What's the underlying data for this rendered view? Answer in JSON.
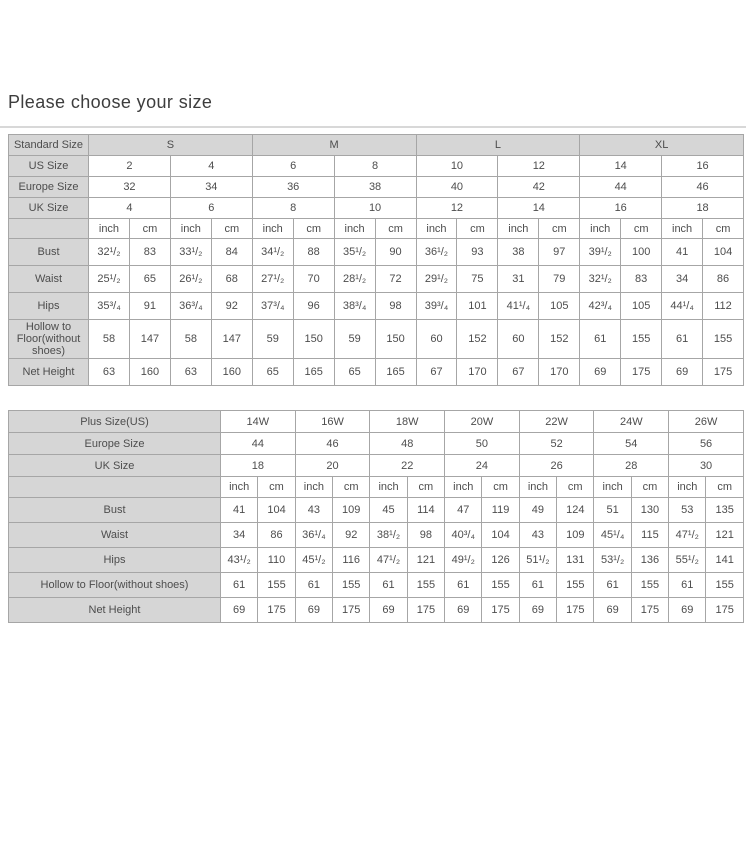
{
  "page": {
    "title": "Please choose your size"
  },
  "colors": {
    "header_bg": "#d6d6d6",
    "cell_bg": "#ffffff",
    "border": "#a6a6a6",
    "text": "#4d4d4d",
    "title_text": "#3d3d3d",
    "divider": "#d8d8d8"
  },
  "table1": {
    "size_row": {
      "label": "Standard Size",
      "sizes": [
        "S",
        "M",
        "L",
        "XL"
      ]
    },
    "conversion_rows": [
      {
        "label": "US Size",
        "values": [
          "2",
          "4",
          "6",
          "8",
          "10",
          "12",
          "14",
          "16"
        ]
      },
      {
        "label": "Europe Size",
        "values": [
          "32",
          "34",
          "36",
          "38",
          "40",
          "42",
          "44",
          "46"
        ]
      },
      {
        "label": "UK Size",
        "values": [
          "4",
          "6",
          "8",
          "10",
          "12",
          "14",
          "16",
          "18"
        ]
      }
    ],
    "unit_row": [
      "inch",
      "cm",
      "inch",
      "cm",
      "inch",
      "cm",
      "inch",
      "cm",
      "inch",
      "cm",
      "inch",
      "cm",
      "inch",
      "cm",
      "inch",
      "cm"
    ],
    "measure_rows": [
      {
        "label": "Bust",
        "values": [
          "32¹/₂",
          "83",
          "33¹/₂",
          "84",
          "34¹/₂",
          "88",
          "35¹/₂",
          "90",
          "36¹/₂",
          "93",
          "38",
          "97",
          "39¹/₂",
          "100",
          "41",
          "104"
        ]
      },
      {
        "label": "Waist",
        "values": [
          "25¹/₂",
          "65",
          "26¹/₂",
          "68",
          "27¹/₂",
          "70",
          "28¹/₂",
          "72",
          "29¹/₂",
          "75",
          "31",
          "79",
          "32¹/₂",
          "83",
          "34",
          "86"
        ]
      },
      {
        "label": "Hips",
        "values": [
          "35³/₄",
          "91",
          "36³/₄",
          "92",
          "37³/₄",
          "96",
          "38³/₄",
          "98",
          "39³/₄",
          "101",
          "41¹/₄",
          "105",
          "42³/₄",
          "105",
          "44¹/₄",
          "112"
        ]
      },
      {
        "label": "Hollow to Floor(without shoes)",
        "values": [
          "58",
          "147",
          "58",
          "147",
          "59",
          "150",
          "59",
          "150",
          "60",
          "152",
          "60",
          "152",
          "61",
          "155",
          "61",
          "155"
        ]
      },
      {
        "label": "Net Height",
        "values": [
          "63",
          "160",
          "63",
          "160",
          "65",
          "165",
          "65",
          "165",
          "67",
          "170",
          "67",
          "170",
          "69",
          "175",
          "69",
          "175"
        ]
      }
    ]
  },
  "table2": {
    "conversion_rows": [
      {
        "label": "Plus Size(US)",
        "values": [
          "14W",
          "16W",
          "18W",
          "20W",
          "22W",
          "24W",
          "26W"
        ]
      },
      {
        "label": "Europe Size",
        "values": [
          "44",
          "46",
          "48",
          "50",
          "52",
          "54",
          "56"
        ]
      },
      {
        "label": "UK Size",
        "values": [
          "18",
          "20",
          "22",
          "24",
          "26",
          "28",
          "30"
        ]
      }
    ],
    "unit_row": [
      "inch",
      "cm",
      "inch",
      "cm",
      "inch",
      "cm",
      "inch",
      "cm",
      "inch",
      "cm",
      "inch",
      "cm",
      "inch",
      "cm"
    ],
    "measure_rows": [
      {
        "label": "Bust",
        "values": [
          "41",
          "104",
          "43",
          "109",
          "45",
          "114",
          "47",
          "119",
          "49",
          "124",
          "51",
          "130",
          "53",
          "135"
        ]
      },
      {
        "label": "Waist",
        "values": [
          "34",
          "86",
          "36¹/₄",
          "92",
          "38¹/₂",
          "98",
          "40³/₄",
          "104",
          "43",
          "109",
          "45¹/₄",
          "115",
          "47¹/₂",
          "121"
        ]
      },
      {
        "label": "Hips",
        "values": [
          "43¹/₂",
          "110",
          "45¹/₂",
          "116",
          "47¹/₂",
          "121",
          "49¹/₂",
          "126",
          "51¹/₂",
          "131",
          "53¹/₂",
          "136",
          "55¹/₂",
          "141"
        ]
      },
      {
        "label": "Hollow to Floor(without shoes)",
        "values": [
          "61",
          "155",
          "61",
          "155",
          "61",
          "155",
          "61",
          "155",
          "61",
          "155",
          "61",
          "155",
          "61",
          "155"
        ]
      },
      {
        "label": "Net Height",
        "values": [
          "69",
          "175",
          "69",
          "175",
          "69",
          "175",
          "69",
          "175",
          "69",
          "175",
          "69",
          "175",
          "69",
          "175"
        ]
      }
    ]
  }
}
